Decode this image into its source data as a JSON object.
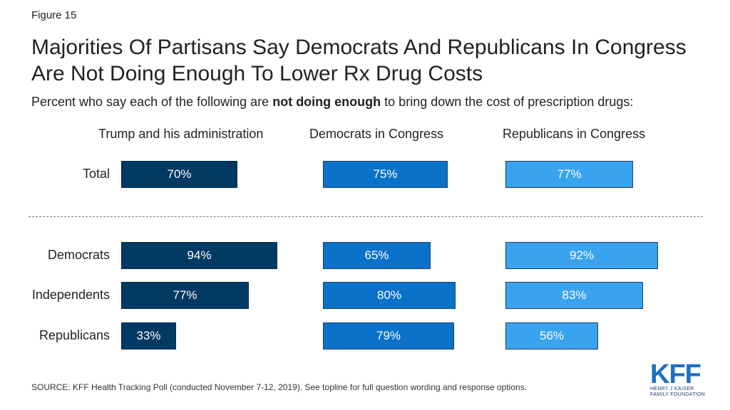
{
  "figure_label": "Figure 15",
  "title": "Majorities Of Partisans Say Democrats And Republicans In Congress Are Not Doing Enough To Lower Rx Drug Costs",
  "subtitle": {
    "before": "Percent who say each of the following are ",
    "bold": "not doing enough",
    "after": " to bring down the cost of prescription drugs:"
  },
  "source": "SOURCE: KFF Health Tracking Poll (conducted November 7-12, 2019). See topline for full question wording and response options.",
  "logo": {
    "main": "KFF",
    "line1": "HENRY J KAISER",
    "line2": "FAMILY FOUNDATION"
  },
  "colors": {
    "trump": "#003a63",
    "democrats": "#0a72c9",
    "republicans": "#3aa3ef"
  },
  "chart_data": {
    "type": "bar",
    "orientation": "horizontal",
    "panels": [
      "Trump and his administration",
      "Democrats in Congress",
      "Republicans in Congress"
    ],
    "categories": [
      "Total",
      "Democrats",
      "Independents",
      "Republicans"
    ],
    "series": [
      {
        "name": "Trump and his administration",
        "values": [
          70,
          94,
          77,
          33
        ],
        "labels": [
          "70%",
          "94%",
          "77%",
          "33%"
        ]
      },
      {
        "name": "Democrats in Congress",
        "values": [
          75,
          65,
          80,
          79
        ],
        "labels": [
          "75%",
          "65%",
          "80%",
          "79%"
        ]
      },
      {
        "name": "Republicans in Congress",
        "values": [
          77,
          92,
          83,
          56
        ],
        "labels": [
          "77%",
          "92%",
          "83%",
          "56%"
        ]
      }
    ],
    "unit": "%",
    "xlim": [
      0,
      100
    ],
    "grid": false
  }
}
